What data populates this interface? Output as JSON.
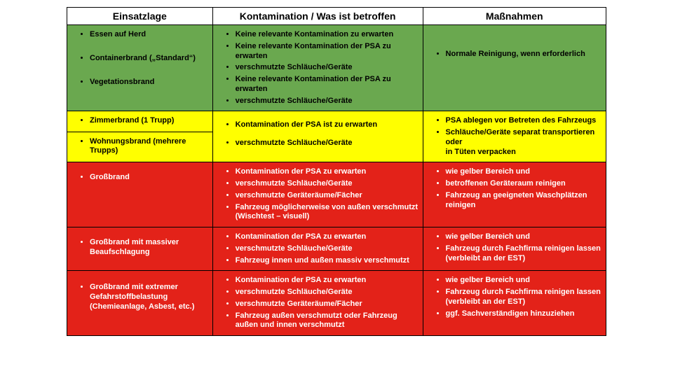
{
  "colors": {
    "green": "#6aa84f",
    "yellow": "#ffff00",
    "red": "#e32219",
    "border": "#000000",
    "text_light": "#ffffff",
    "text_dark": "#000000"
  },
  "headers": {
    "c1": "Einsatzlage",
    "c2": "Kontamination / Was ist betroffen",
    "c3": "Maßnahmen"
  },
  "green_row": {
    "situations": [
      "Essen auf Herd",
      "Containerbrand („Standard“)",
      "Vegetationsbrand"
    ],
    "contamination": [
      "Keine relevante Kontamination zu erwarten",
      "Keine relevante Kontamination der PSA zu erwarten",
      "verschmutzte Schläuche/Geräte",
      "Keine relevante Kontamination der PSA zu erwarten",
      "verschmutzte Schläuche/Geräte"
    ],
    "measures": [
      "Normale Reinigung, wenn erforderlich"
    ]
  },
  "yellow_row": {
    "situation_top": "Zimmerbrand (1 Trupp)",
    "situation_bottom": "Wohnungsbrand (mehrere Trupps)",
    "contamination": [
      "Kontamination der PSA ist zu erwarten",
      "verschmutzte Schläuche/Geräte"
    ],
    "measures": [
      "PSA ablegen vor Betreten des Fahrzeugs",
      "Schläuche/Geräte separat transportieren oder\nin Tüten verpacken"
    ]
  },
  "red_rows": [
    {
      "situation": "Großbrand",
      "contamination": [
        "Kontamination der PSA zu erwarten",
        "verschmutzte Schläuche/Geräte",
        "verschmutzte Geräteräume/Fächer",
        "Fahrzeug möglicherweise von außen verschmutzt (Wischtest – visuell)"
      ],
      "measures": [
        "wie gelber Bereich und",
        "betroffenen Geräteraum reinigen",
        "Fahrzeug an geeigneten Waschplätzen reinigen"
      ]
    },
    {
      "situation": "Großbrand mit massiver Beaufschlagung",
      "contamination": [
        "Kontamination der PSA zu erwarten",
        "verschmutzte Schläuche/Geräte",
        "Fahrzeug innen und außen massiv verschmutzt"
      ],
      "measures": [
        "wie gelber Bereich und",
        "Fahrzeug durch Fachfirma reinigen lassen (verbleibt an der EST)"
      ]
    },
    {
      "situation": "Großbrand mit extremer Gefahrstoffbelastung (Chemieanlage, Asbest, etc.)",
      "contamination": [
        "Kontamination der PSA zu erwarten",
        "verschmutzte Schläuche/Geräte",
        "verschmutzte Geräteräume/Fächer",
        "Fahrzeug außen verschmutzt oder Fahrzeug außen und innen verschmutzt"
      ],
      "measures": [
        "wie gelber Bereich und",
        "Fahrzeug durch Fachfirma reinigen lassen (verbleibt an der EST)",
        "ggf. Sachverständigen hinzuziehen"
      ]
    }
  ]
}
